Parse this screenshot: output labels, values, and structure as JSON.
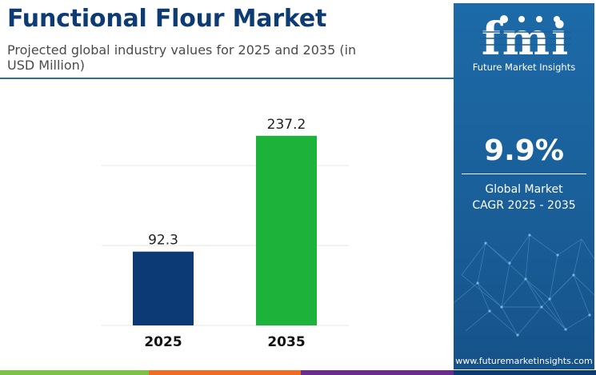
{
  "header": {
    "title": "Functional Flour Market",
    "subtitle": "Projected global industry values for 2025 and 2035 (in USD Million)"
  },
  "chart_data": {
    "type": "bar",
    "categories": [
      "2025",
      "2035"
    ],
    "values": [
      92.3,
      237.2
    ],
    "value_labels": [
      "92.3",
      "237.2"
    ],
    "bar_colors": [
      "#0b3a75",
      "#1db33a"
    ],
    "grid": true,
    "ylim": [
      0,
      300
    ]
  },
  "side_panel": {
    "logo_text": "fmi",
    "logo_subtitle": "Future Market Insights",
    "cagr_value": "9.9%",
    "cagr_label_line1": "Global Market",
    "cagr_label_line2": "CAGR 2025 - 2035",
    "website": "www.futuremarketinsights.com",
    "background_color": "#1a5f99"
  },
  "footer": {
    "strip_colors": [
      "#7dc242",
      "#f26b21",
      "#6a2c91",
      "#0b3a75"
    ]
  }
}
